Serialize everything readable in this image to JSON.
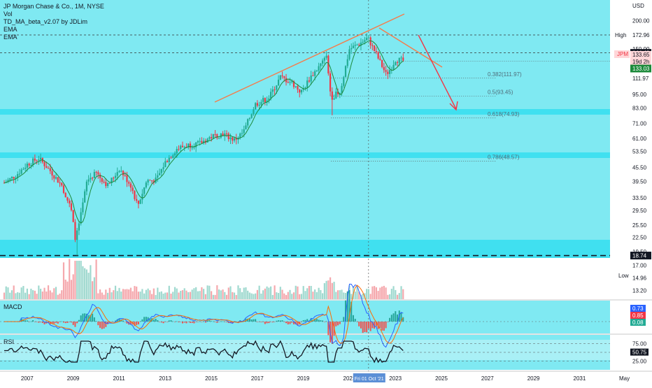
{
  "header": {
    "title": "JP Morgan Chase & Co., 1M, NYSE",
    "indicators": [
      "Vol",
      "TD_MA_beta_v2.07 by JDLim",
      "EMA",
      "EMA"
    ]
  },
  "price_axis": {
    "currency": "USD",
    "ticks": [
      "200.00",
      "150.00",
      "111.97",
      "95.00",
      "83.00",
      "71.00",
      "61.00",
      "53.50",
      "45.50",
      "39.50",
      "33.50",
      "29.50",
      "25.50",
      "22.50",
      "19.50",
      "17.00",
      "14.96",
      "13.20"
    ],
    "extra_ticks": [
      "132.87"
    ],
    "high_label": "High",
    "high_value": "172.96",
    "ref_value": "144.40",
    "symbol_label": "JPM",
    "price_value": "133.65",
    "countdown": "19d 2h",
    "last_value": "133.03",
    "low_value": "18.74",
    "low_label": "Low"
  },
  "time_axis": {
    "years": [
      "2007",
      "2009",
      "2011",
      "2013",
      "2015",
      "2017",
      "2019",
      "2021",
      "2023",
      "2025",
      "2027",
      "2029",
      "2031",
      "May"
    ],
    "cursor_label": "Fri 01 Oct '21"
  },
  "fib_levels": [
    {
      "label": "0.382(111.97)"
    },
    {
      "label": "0.5(93.45)"
    },
    {
      "label": "0.618(74.93)"
    },
    {
      "label": "0.786(48.57)"
    }
  ],
  "macd": {
    "title": "MACD",
    "values": [
      "0.73",
      "0.85",
      "0.08"
    ]
  },
  "rsi": {
    "title": "RSI",
    "ticks": [
      "75.00",
      "50.00",
      "25.00"
    ],
    "value": "50.75"
  },
  "colors": {
    "background_cyan": "#7fe9f2",
    "zone_cyan": "#40e0f0",
    "candle_up": "#22ab94",
    "candle_down": "#f23645",
    "trendline": "#f57c4b",
    "arrow": "#f23645",
    "macd_line": "#2962ff",
    "signal_line": "#ff6d00",
    "rsi_line": "#131722"
  },
  "chart_data": {
    "type": "candlestick",
    "title": "JP Morgan Chase & Co., 1M, NYSE",
    "y_scale": "log",
    "ylim": [
      12.5,
      210
    ],
    "xlim": [
      2006.0,
      2032.4
    ],
    "series": [
      {
        "name": "JPM",
        "x": [
          2006.0,
          2006.5,
          2007.0,
          2007.5,
          2008.0,
          2008.5,
          2008.9,
          2009.1,
          2009.3,
          2009.6,
          2010.0,
          2010.5,
          2011.0,
          2011.5,
          2011.8,
          2012.2,
          2012.6,
          2013.0,
          2013.5,
          2014.0,
          2014.5,
          2015.0,
          2015.5,
          2016.0,
          2016.4,
          2016.9,
          2017.5,
          2018.0,
          2018.5,
          2018.9,
          2019.3,
          2019.8,
          2020.0,
          2020.2,
          2020.6,
          2021.0,
          2021.5,
          2021.8,
          2022.2,
          2022.6,
          2022.8,
          2023.0,
          2023.3
        ],
        "close": [
          39,
          42,
          47,
          50,
          44,
          38,
          30,
          22,
          27,
          40,
          43,
          38,
          45,
          38,
          31,
          40,
          40,
          48,
          55,
          57,
          58,
          62,
          64,
          60,
          65,
          86,
          92,
          113,
          107,
          97,
          113,
          130,
          138,
          92,
          98,
          150,
          160,
          168,
          140,
          116,
          124,
          135,
          133.65
        ]
      }
    ],
    "events": {
      "high": 172.96,
      "low": 18.74
    },
    "fib_levels": [
      {
        "ratio": 0.382,
        "value": 111.97
      },
      {
        "ratio": 0.5,
        "value": 93.45
      },
      {
        "ratio": 0.618,
        "value": 74.93
      },
      {
        "ratio": 0.786,
        "value": 48.57
      }
    ],
    "reference_lines": [
      172.96,
      144.4,
      132.87
    ],
    "rsi_ylim": [
      0,
      100
    ],
    "rsi_last": 50.75,
    "macd_last": [
      0.73,
      0.85,
      0.08
    ],
    "grid": false
  }
}
